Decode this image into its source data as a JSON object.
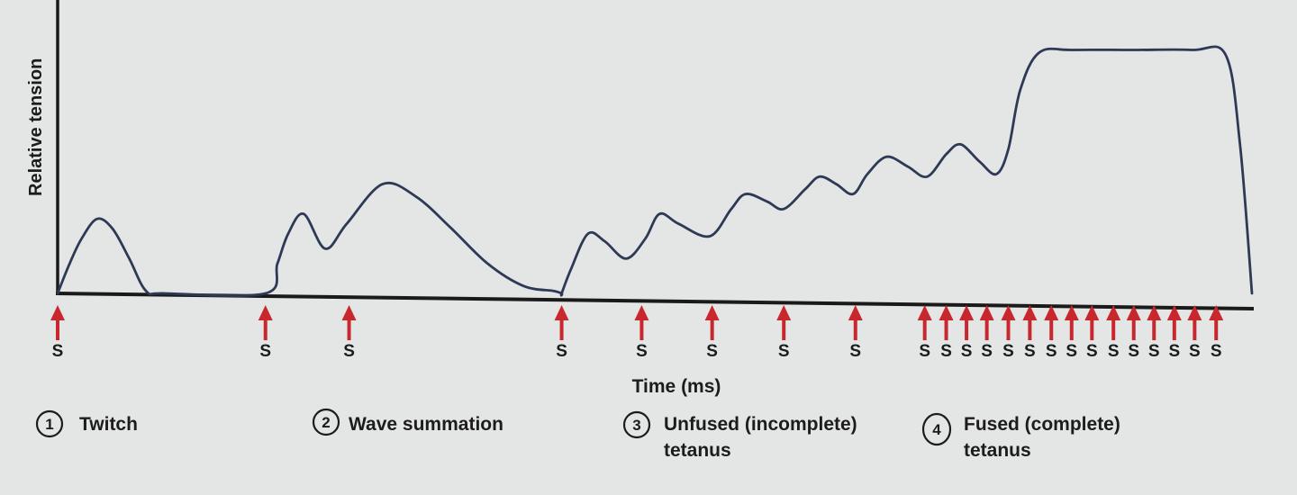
{
  "chart_data": {
    "type": "line",
    "title": "",
    "xlabel": "Time (ms)",
    "ylabel": "Relative tension",
    "xlim": [
      0,
      100
    ],
    "ylim": [
      0,
      100
    ],
    "grid": false,
    "colors": {
      "curve": "#2e3a55",
      "axis": "#1a1a1a",
      "stimulus": "#c8282d",
      "text": "#1c1c1c"
    },
    "series": [
      {
        "points": [
          [
            0.0,
            0
          ],
          [
            1.0,
            12
          ],
          [
            2.0,
            22
          ],
          [
            3.3,
            30
          ],
          [
            4.6,
            26
          ],
          [
            6.0,
            14
          ],
          [
            7.4,
            1
          ],
          [
            9.0,
            0
          ],
          [
            17.4,
            0
          ],
          [
            18.4,
            12
          ],
          [
            19.3,
            24
          ],
          [
            20.6,
            32
          ],
          [
            22.4,
            18
          ],
          [
            24.2,
            28
          ],
          [
            27.2,
            44
          ],
          [
            30.0,
            39
          ],
          [
            33.0,
            26
          ],
          [
            36.0,
            12
          ],
          [
            39.0,
            3
          ],
          [
            41.5,
            1
          ],
          [
            42.2,
            0
          ],
          [
            42.2,
            0
          ],
          [
            43.0,
            10
          ],
          [
            44.4,
            24
          ],
          [
            45.8,
            21
          ],
          [
            47.6,
            14
          ],
          [
            49.2,
            22
          ],
          [
            50.4,
            32
          ],
          [
            52.0,
            28
          ],
          [
            54.6,
            23
          ],
          [
            56.4,
            34
          ],
          [
            57.6,
            40
          ],
          [
            59.4,
            37
          ],
          [
            60.8,
            34
          ],
          [
            62.6,
            42
          ],
          [
            63.8,
            47
          ],
          [
            65.2,
            44
          ],
          [
            66.6,
            40
          ],
          [
            67.8,
            48
          ],
          [
            69.4,
            55
          ],
          [
            71.2,
            51
          ],
          [
            72.8,
            47
          ],
          [
            74.4,
            56
          ],
          [
            75.6,
            60
          ],
          [
            77.2,
            53
          ],
          [
            78.6,
            48
          ],
          [
            79.6,
            58
          ],
          [
            80.6,
            82
          ],
          [
            82.2,
            97
          ],
          [
            85.0,
            98
          ],
          [
            90.0,
            98
          ],
          [
            95.0,
            98
          ],
          [
            97.8,
            96
          ],
          [
            99.0,
            60
          ],
          [
            100.0,
            0
          ]
        ]
      }
    ],
    "stimuli": [
      {
        "x": 0.0,
        "label": "S"
      },
      {
        "x": 17.4,
        "label": "S"
      },
      {
        "x": 24.4,
        "label": "S"
      },
      {
        "x": 42.2,
        "label": "S"
      },
      {
        "x": 48.9,
        "label": "S"
      },
      {
        "x": 54.8,
        "label": "S"
      },
      {
        "x": 60.8,
        "label": "S"
      },
      {
        "x": 66.8,
        "label": "S"
      },
      {
        "x": 72.6,
        "label": "S"
      },
      {
        "x": 74.4,
        "label": "S"
      },
      {
        "x": 76.1,
        "label": "S"
      },
      {
        "x": 77.8,
        "label": "S"
      },
      {
        "x": 79.6,
        "label": "S"
      },
      {
        "x": 81.4,
        "label": "S"
      },
      {
        "x": 83.2,
        "label": "S"
      },
      {
        "x": 84.9,
        "label": "S"
      },
      {
        "x": 86.6,
        "label": "S"
      },
      {
        "x": 88.4,
        "label": "S"
      },
      {
        "x": 90.1,
        "label": "S"
      },
      {
        "x": 91.8,
        "label": "S"
      },
      {
        "x": 93.5,
        "label": "S"
      },
      {
        "x": 95.2,
        "label": "S"
      },
      {
        "x": 97.0,
        "label": "S"
      }
    ],
    "annotations": [
      {
        "number": "1",
        "text": [
          "Twitch"
        ]
      },
      {
        "number": "2",
        "text": [
          "Wave summation"
        ]
      },
      {
        "number": "3",
        "text": [
          "Unfused (incomplete)",
          "tetanus"
        ]
      },
      {
        "number": "4",
        "text": [
          "Fused (complete)",
          "tetanus"
        ]
      }
    ]
  }
}
